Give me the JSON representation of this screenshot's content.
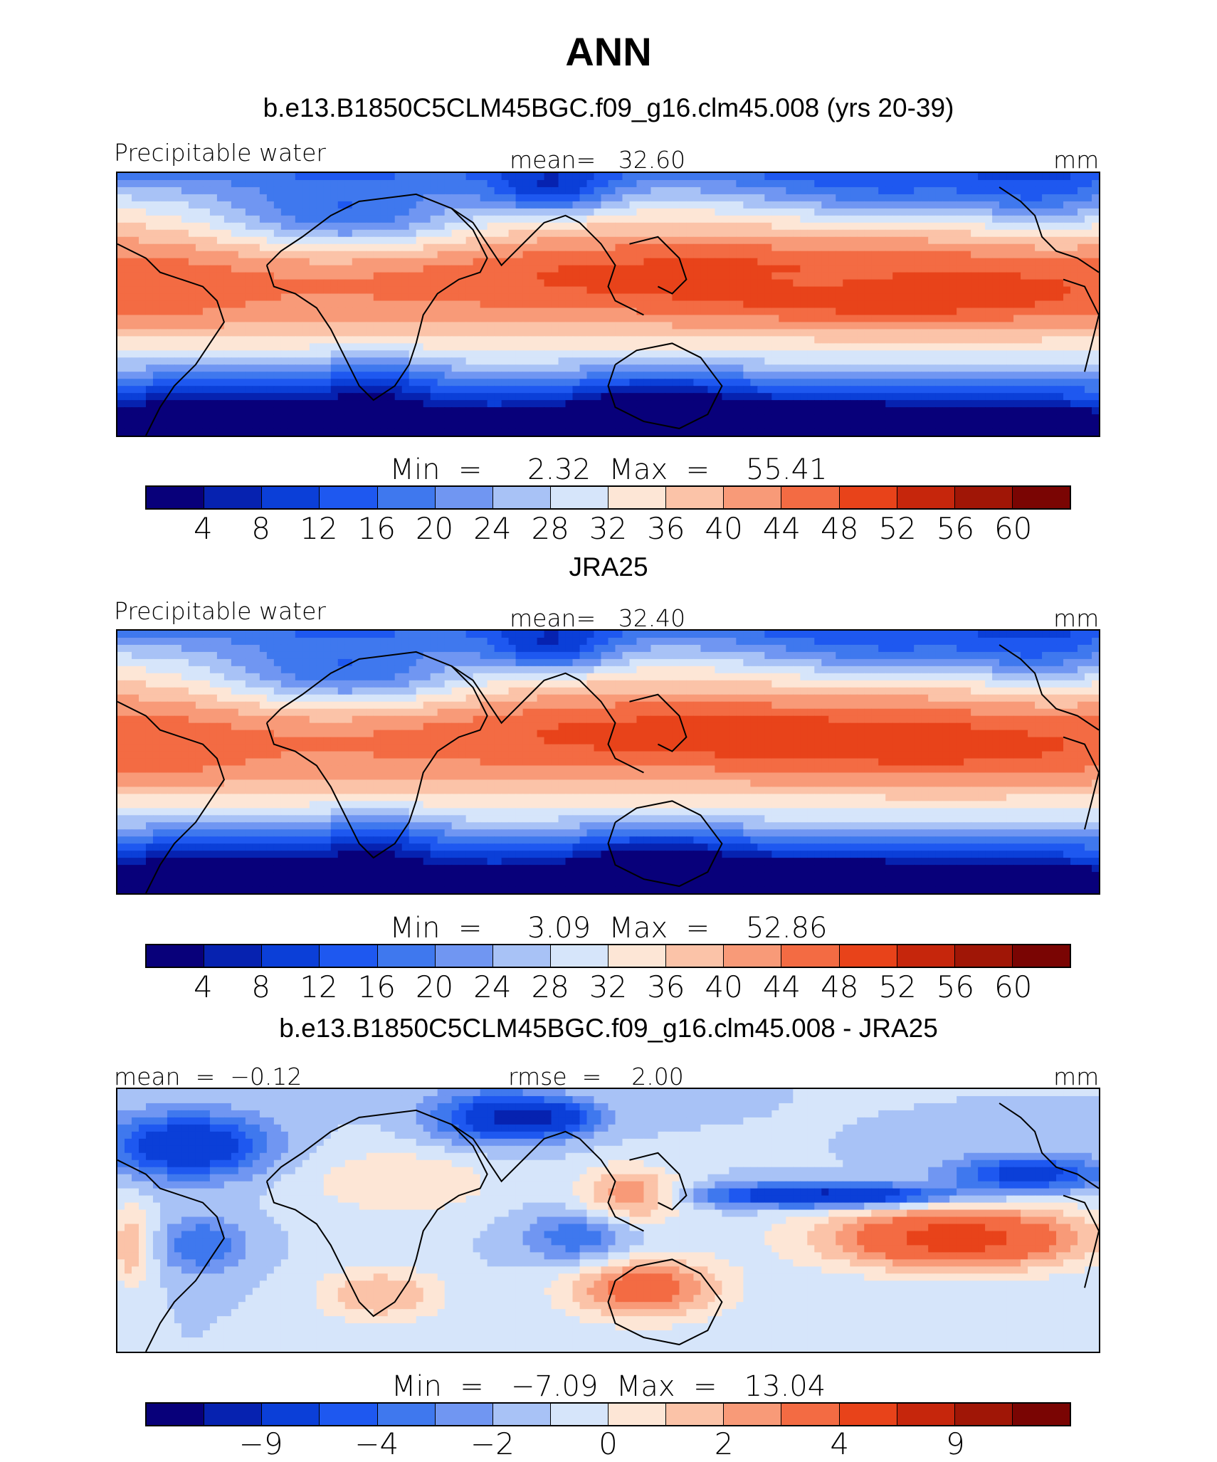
{
  "title": "ANN",
  "panels": [
    {
      "title": "b.e13.B1850C5CLM45BGC.f09_g16.clm45.008 (yrs 20-39)",
      "left_label": "Precipitable water",
      "center_label": "mean=   32.60",
      "units": "mm",
      "minmax": "Min  =     2.32  Max  =    55.41",
      "field": "model",
      "ticks": [
        "4",
        "8",
        "12",
        "16",
        "20",
        "24",
        "28",
        "32",
        "36",
        "40",
        "44",
        "48",
        "52",
        "56",
        "60"
      ]
    },
    {
      "title": "JRA25",
      "left_label": "Precipitable water",
      "center_label": "mean=   32.40",
      "units": "mm",
      "minmax": "Min  =     3.09  Max  =    52.86",
      "field": "obs",
      "ticks": [
        "4",
        "8",
        "12",
        "16",
        "20",
        "24",
        "28",
        "32",
        "36",
        "40",
        "44",
        "48",
        "52",
        "56",
        "60"
      ]
    },
    {
      "title": "b.e13.B1850C5CLM45BGC.f09_g16.clm45.008 - JRA25",
      "left_label": "mean  =  −0.12",
      "center_label": "rmse  =    2.00",
      "units": "mm",
      "minmax": "Min  =   −7.09  Max  =   13.04",
      "field": "diff",
      "ticks": [
        "−9",
        "−4",
        "−2",
        "0",
        "2",
        "4",
        "9"
      ]
    }
  ],
  "colormap": [
    "#08007a",
    "#0622b0",
    "#0b3fd8",
    "#1e58f0",
    "#3f78ee",
    "#7096f2",
    "#a8c2f6",
    "#d6e5fa",
    "#fde6d6",
    "#fbc3a8",
    "#f89a78",
    "#f36b43",
    "#e8431a",
    "#c6260c",
    "#a01606",
    "#7a0503"
  ]
}
